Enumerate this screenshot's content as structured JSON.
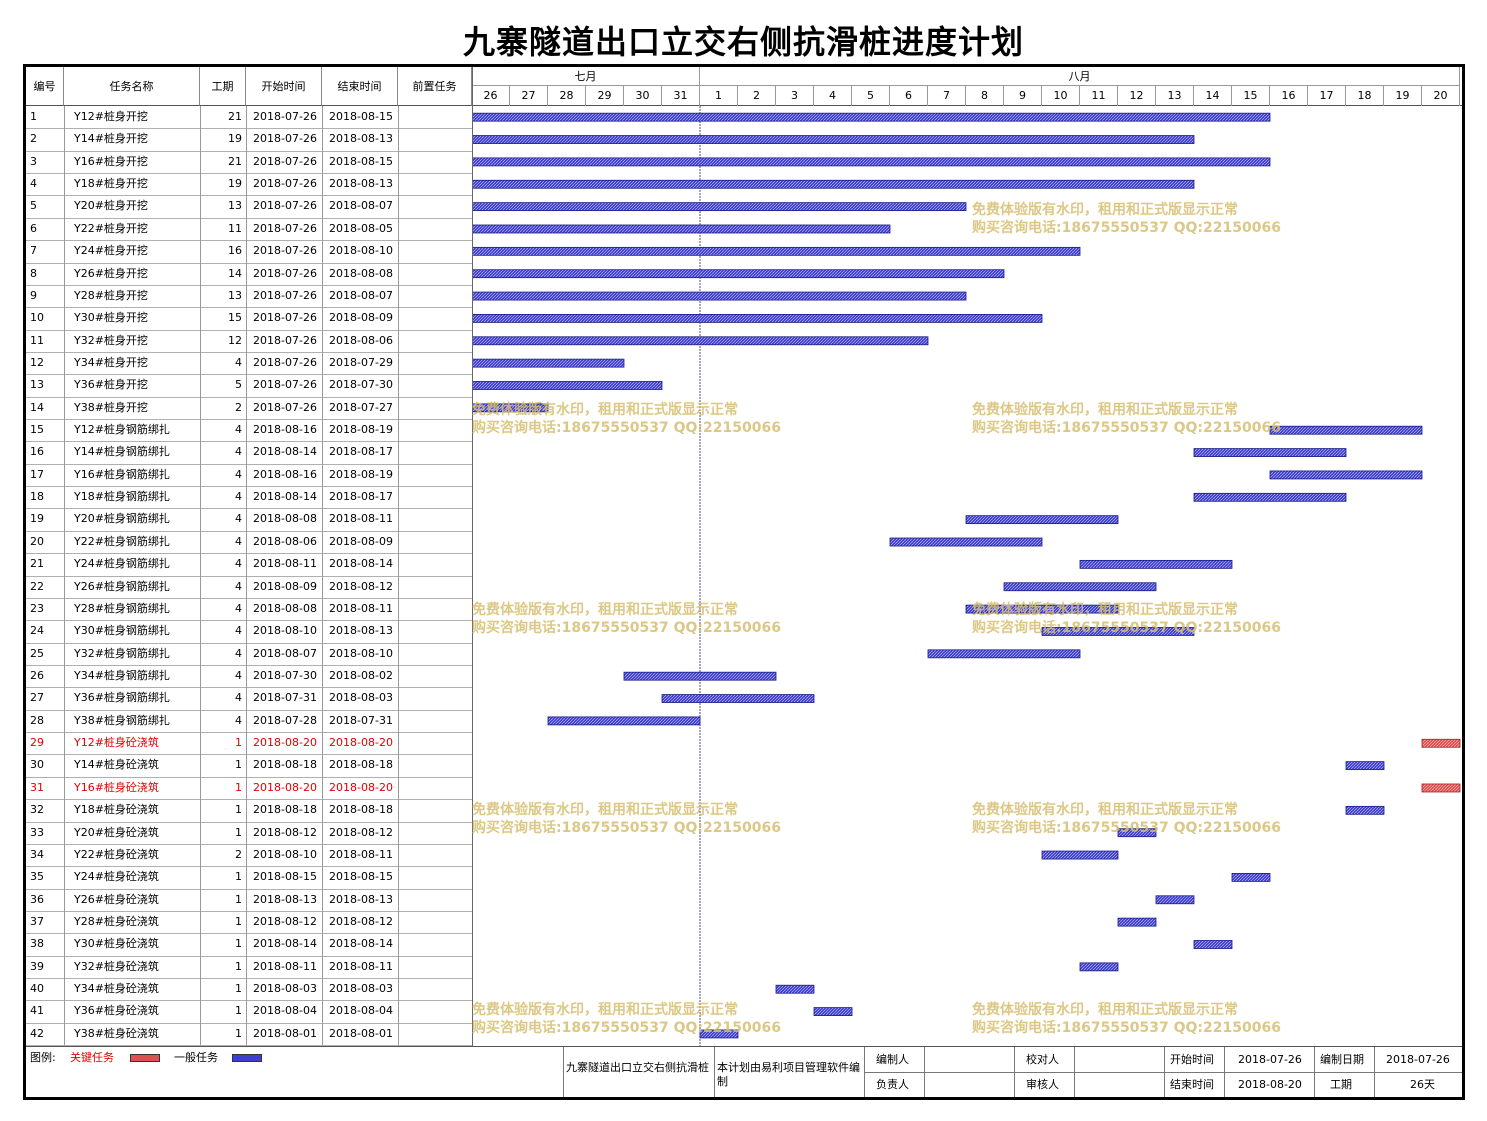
{
  "title": "九寨隧道出口立交右侧抗滑桩进度计划",
  "headers": {
    "id": "编号",
    "name": "任务名称",
    "duration": "工期",
    "start": "开始时间",
    "end": "结束时间",
    "pred": "前置任务"
  },
  "timeline": {
    "months": [
      "七月",
      "八月"
    ],
    "days": [
      "26",
      "27",
      "28",
      "29",
      "30",
      "31",
      "1",
      "2",
      "3",
      "4",
      "5",
      "6",
      "7",
      "8",
      "9",
      "10",
      "11",
      "12",
      "13",
      "14",
      "15",
      "16",
      "17",
      "18",
      "19",
      "20"
    ]
  },
  "colors": {
    "normal_bar": "#4040d0",
    "critical_bar": "#e05050",
    "critical_text": "#e00000"
  },
  "tasks": [
    {
      "id": "1",
      "name": "Y12#桩身开挖",
      "duration": "21",
      "start": "2018-07-26",
      "end": "2018-08-15",
      "critical": false
    },
    {
      "id": "2",
      "name": "Y14#桩身开挖",
      "duration": "19",
      "start": "2018-07-26",
      "end": "2018-08-13",
      "critical": false
    },
    {
      "id": "3",
      "name": "Y16#桩身开挖",
      "duration": "21",
      "start": "2018-07-26",
      "end": "2018-08-15",
      "critical": false
    },
    {
      "id": "4",
      "name": "Y18#桩身开挖",
      "duration": "19",
      "start": "2018-07-26",
      "end": "2018-08-13",
      "critical": false
    },
    {
      "id": "5",
      "name": "Y20#桩身开挖",
      "duration": "13",
      "start": "2018-07-26",
      "end": "2018-08-07",
      "critical": false
    },
    {
      "id": "6",
      "name": "Y22#桩身开挖",
      "duration": "11",
      "start": "2018-07-26",
      "end": "2018-08-05",
      "critical": false
    },
    {
      "id": "7",
      "name": "Y24#桩身开挖",
      "duration": "16",
      "start": "2018-07-26",
      "end": "2018-08-10",
      "critical": false
    },
    {
      "id": "8",
      "name": "Y26#桩身开挖",
      "duration": "14",
      "start": "2018-07-26",
      "end": "2018-08-08",
      "critical": false
    },
    {
      "id": "9",
      "name": "Y28#桩身开挖",
      "duration": "13",
      "start": "2018-07-26",
      "end": "2018-08-07",
      "critical": false
    },
    {
      "id": "10",
      "name": "Y30#桩身开挖",
      "duration": "15",
      "start": "2018-07-26",
      "end": "2018-08-09",
      "critical": false
    },
    {
      "id": "11",
      "name": "Y32#桩身开挖",
      "duration": "12",
      "start": "2018-07-26",
      "end": "2018-08-06",
      "critical": false
    },
    {
      "id": "12",
      "name": "Y34#桩身开挖",
      "duration": "4",
      "start": "2018-07-26",
      "end": "2018-07-29",
      "critical": false
    },
    {
      "id": "13",
      "name": "Y36#桩身开挖",
      "duration": "5",
      "start": "2018-07-26",
      "end": "2018-07-30",
      "critical": false
    },
    {
      "id": "14",
      "name": "Y38#桩身开挖",
      "duration": "2",
      "start": "2018-07-26",
      "end": "2018-07-27",
      "critical": false
    },
    {
      "id": "15",
      "name": "Y12#桩身钢筋绑扎",
      "duration": "4",
      "start": "2018-08-16",
      "end": "2018-08-19",
      "critical": false
    },
    {
      "id": "16",
      "name": "Y14#桩身钢筋绑扎",
      "duration": "4",
      "start": "2018-08-14",
      "end": "2018-08-17",
      "critical": false
    },
    {
      "id": "17",
      "name": "Y16#桩身钢筋绑扎",
      "duration": "4",
      "start": "2018-08-16",
      "end": "2018-08-19",
      "critical": false
    },
    {
      "id": "18",
      "name": "Y18#桩身钢筋绑扎",
      "duration": "4",
      "start": "2018-08-14",
      "end": "2018-08-17",
      "critical": false
    },
    {
      "id": "19",
      "name": "Y20#桩身钢筋绑扎",
      "duration": "4",
      "start": "2018-08-08",
      "end": "2018-08-11",
      "critical": false
    },
    {
      "id": "20",
      "name": "Y22#桩身钢筋绑扎",
      "duration": "4",
      "start": "2018-08-06",
      "end": "2018-08-09",
      "critical": false
    },
    {
      "id": "21",
      "name": "Y24#桩身钢筋绑扎",
      "duration": "4",
      "start": "2018-08-11",
      "end": "2018-08-14",
      "critical": false
    },
    {
      "id": "22",
      "name": "Y26#桩身钢筋绑扎",
      "duration": "4",
      "start": "2018-08-09",
      "end": "2018-08-12",
      "critical": false
    },
    {
      "id": "23",
      "name": "Y28#桩身钢筋绑扎",
      "duration": "4",
      "start": "2018-08-08",
      "end": "2018-08-11",
      "critical": false
    },
    {
      "id": "24",
      "name": "Y30#桩身钢筋绑扎",
      "duration": "4",
      "start": "2018-08-10",
      "end": "2018-08-13",
      "critical": false
    },
    {
      "id": "25",
      "name": "Y32#桩身钢筋绑扎",
      "duration": "4",
      "start": "2018-08-07",
      "end": "2018-08-10",
      "critical": false
    },
    {
      "id": "26",
      "name": "Y34#桩身钢筋绑扎",
      "duration": "4",
      "start": "2018-07-30",
      "end": "2018-08-02",
      "critical": false
    },
    {
      "id": "27",
      "name": "Y36#桩身钢筋绑扎",
      "duration": "4",
      "start": "2018-07-31",
      "end": "2018-08-03",
      "critical": false
    },
    {
      "id": "28",
      "name": "Y38#桩身钢筋绑扎",
      "duration": "4",
      "start": "2018-07-28",
      "end": "2018-07-31",
      "critical": false
    },
    {
      "id": "29",
      "name": "Y12#桩身砼浇筑",
      "duration": "1",
      "start": "2018-08-20",
      "end": "2018-08-20",
      "critical": true
    },
    {
      "id": "30",
      "name": "Y14#桩身砼浇筑",
      "duration": "1",
      "start": "2018-08-18",
      "end": "2018-08-18",
      "critical": false
    },
    {
      "id": "31",
      "name": "Y16#桩身砼浇筑",
      "duration": "1",
      "start": "2018-08-20",
      "end": "2018-08-20",
      "critical": true
    },
    {
      "id": "32",
      "name": "Y18#桩身砼浇筑",
      "duration": "1",
      "start": "2018-08-18",
      "end": "2018-08-18",
      "critical": false
    },
    {
      "id": "33",
      "name": "Y20#桩身砼浇筑",
      "duration": "1",
      "start": "2018-08-12",
      "end": "2018-08-12",
      "critical": false
    },
    {
      "id": "34",
      "name": "Y22#桩身砼浇筑",
      "duration": "2",
      "start": "2018-08-10",
      "end": "2018-08-11",
      "critical": false
    },
    {
      "id": "35",
      "name": "Y24#桩身砼浇筑",
      "duration": "1",
      "start": "2018-08-15",
      "end": "2018-08-15",
      "critical": false
    },
    {
      "id": "36",
      "name": "Y26#桩身砼浇筑",
      "duration": "1",
      "start": "2018-08-13",
      "end": "2018-08-13",
      "critical": false
    },
    {
      "id": "37",
      "name": "Y28#桩身砼浇筑",
      "duration": "1",
      "start": "2018-08-12",
      "end": "2018-08-12",
      "critical": false
    },
    {
      "id": "38",
      "name": "Y30#桩身砼浇筑",
      "duration": "1",
      "start": "2018-08-14",
      "end": "2018-08-14",
      "critical": false
    },
    {
      "id": "39",
      "name": "Y32#桩身砼浇筑",
      "duration": "1",
      "start": "2018-08-11",
      "end": "2018-08-11",
      "critical": false
    },
    {
      "id": "40",
      "name": "Y34#桩身砼浇筑",
      "duration": "1",
      "start": "2018-08-03",
      "end": "2018-08-03",
      "critical": false
    },
    {
      "id": "41",
      "name": "Y36#桩身砼浇筑",
      "duration": "1",
      "start": "2018-08-04",
      "end": "2018-08-04",
      "critical": false
    },
    {
      "id": "42",
      "name": "Y38#桩身砼浇筑",
      "duration": "1",
      "start": "2018-08-01",
      "end": "2018-08-01",
      "critical": false
    }
  ],
  "watermark": {
    "line1": "免费体验版有水印，租用和正式版显示正常",
    "line2": "购买咨询电话:18675550537 QQ:22150066"
  },
  "footer": {
    "legend_label": "图例:",
    "legend_critical": "关键任务",
    "legend_normal": "一般任务",
    "project_name": "九寨隧道出口立交右侧抗滑桩",
    "software_note": "本计划由易利项目管理软件编制",
    "compiler_label": "编制人",
    "compiler_value": "",
    "checker_label": "校对人",
    "checker_value": "",
    "start_label": "开始时间",
    "start_value": "2018-07-26",
    "compile_date_label": "编制日期",
    "compile_date_value": "2018-07-26",
    "responsible_label": "负责人",
    "responsible_value": "",
    "reviewer_label": "审核人",
    "reviewer_value": "",
    "end_label": "结束时间",
    "end_value": "2018-08-20",
    "duration_label": "工期",
    "duration_value": "26天"
  }
}
